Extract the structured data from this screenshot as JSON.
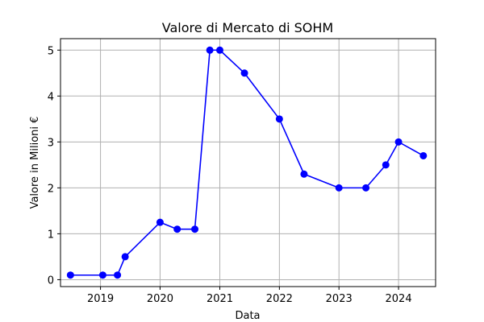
{
  "chart_data": {
    "type": "line",
    "title": "Valore di Mercato di SOHM",
    "xlabel": "Data",
    "ylabel": "Valore in Milioni €",
    "x_tick_labels": [
      "2019",
      "2020",
      "2021",
      "2022",
      "2023",
      "2024"
    ],
    "y_tick_labels": [
      "0",
      "1",
      "2",
      "3",
      "4",
      "5"
    ],
    "xlim": [
      "2018-05-01",
      "2024-08-15"
    ],
    "ylim": [
      -0.15,
      5.25
    ],
    "grid": true,
    "series": [
      {
        "color": "#0000ff",
        "marker": "circle",
        "points": [
          {
            "x": "2018-07-01",
            "y": 0.1
          },
          {
            "x": "2019-01-15",
            "y": 0.1
          },
          {
            "x": "2019-04-15",
            "y": 0.1
          },
          {
            "x": "2019-06-01",
            "y": 0.5
          },
          {
            "x": "2020-01-01",
            "y": 1.25
          },
          {
            "x": "2020-04-15",
            "y": 1.1
          },
          {
            "x": "2020-08-01",
            "y": 1.1
          },
          {
            "x": "2020-11-01",
            "y": 5.0
          },
          {
            "x": "2021-01-01",
            "y": 5.0
          },
          {
            "x": "2021-06-01",
            "y": 4.5
          },
          {
            "x": "2022-01-01",
            "y": 3.5
          },
          {
            "x": "2022-06-01",
            "y": 2.3
          },
          {
            "x": "2023-01-01",
            "y": 2.0
          },
          {
            "x": "2023-06-15",
            "y": 2.0
          },
          {
            "x": "2023-10-15",
            "y": 2.5
          },
          {
            "x": "2024-01-01",
            "y": 3.0
          },
          {
            "x": "2024-06-01",
            "y": 2.7
          }
        ]
      }
    ]
  }
}
